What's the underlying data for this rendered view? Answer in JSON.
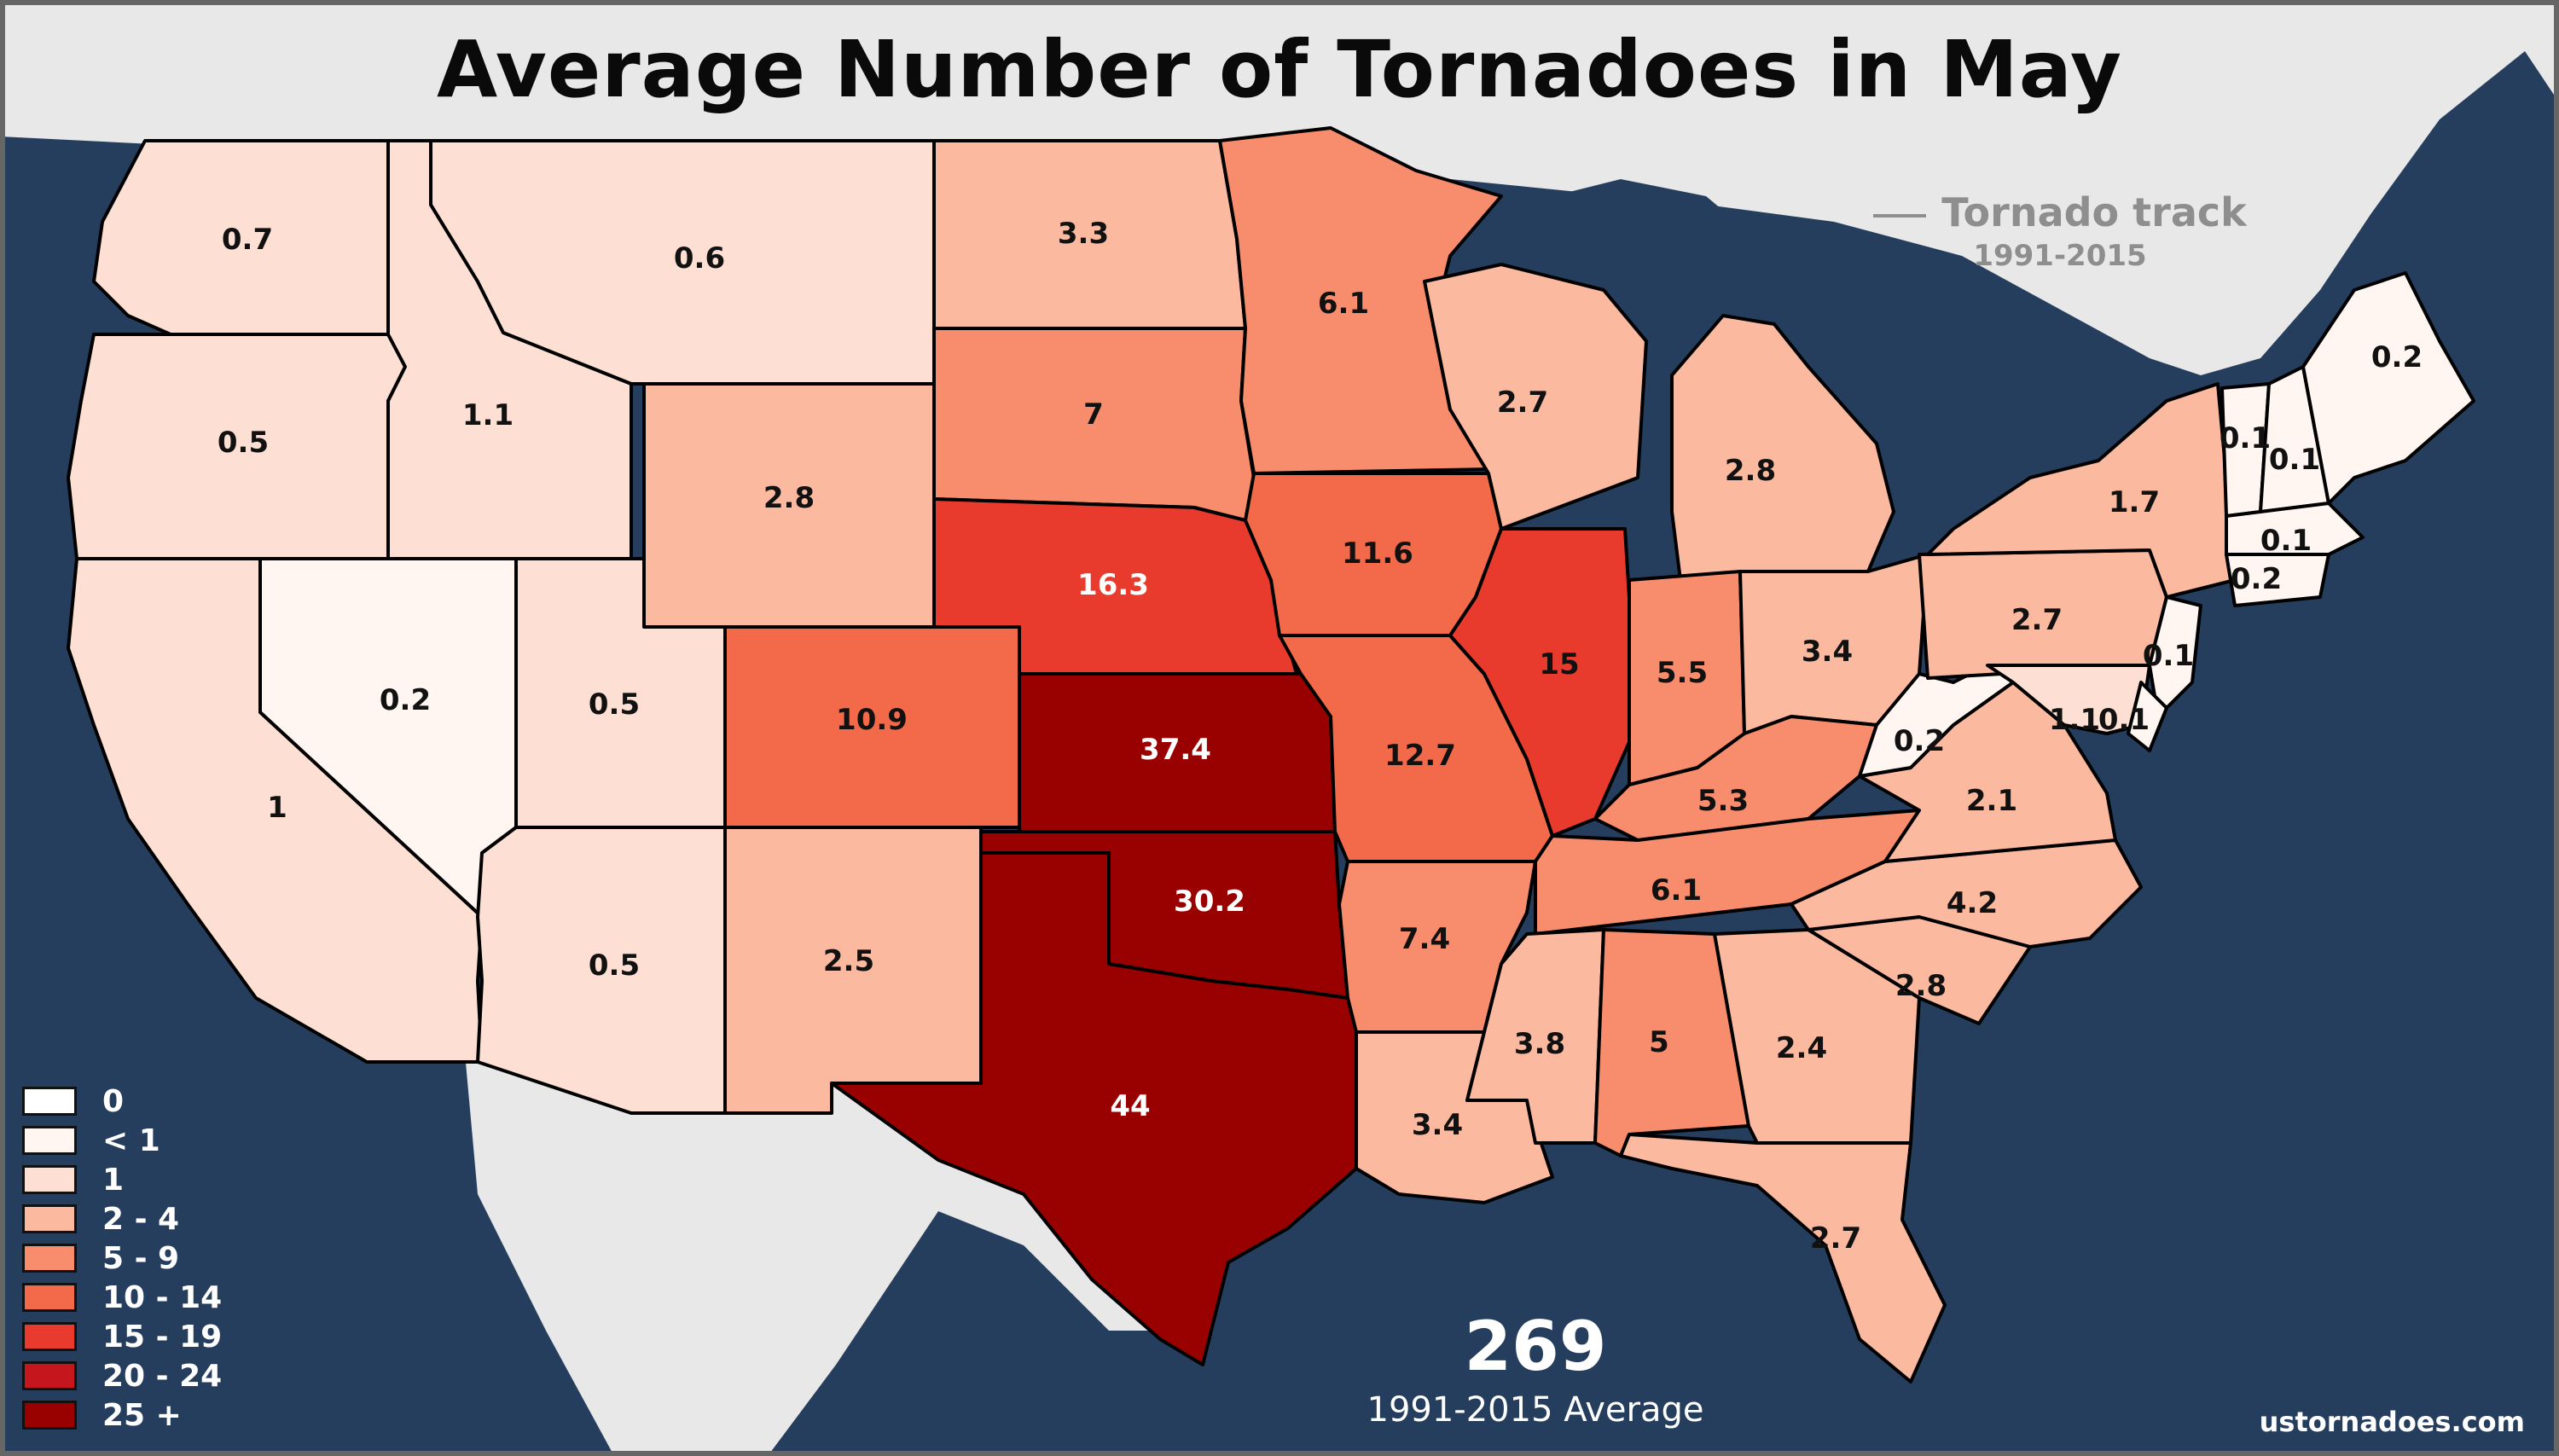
{
  "title": "Average Number of Tornadoes in May",
  "track_legend": {
    "label": "Tornado track",
    "years": "1991-2015"
  },
  "total": {
    "value": "269",
    "label": "1991-2015 Average"
  },
  "site": "ustornadoes.com",
  "colors": {
    "water": "#263e5e",
    "land": "#e8e8e8",
    "c0": "#ffffff",
    "lt1": "#fff5f1",
    "c1": "#fde0d3",
    "c2_4": "#fbb99f",
    "c5_9": "#f78d6d",
    "c10_14": "#f26a4a",
    "c15_19": "#e83b2d",
    "c20_24": "#c5161d",
    "c25": "#990000"
  },
  "legend": [
    {
      "label": "0",
      "color": "#ffffff"
    },
    {
      "label": "< 1",
      "color": "#fff5f1"
    },
    {
      "label": "1",
      "color": "#fde0d3"
    },
    {
      "label": "2 - 4",
      "color": "#fbb99f"
    },
    {
      "label": "5 - 9",
      "color": "#f78d6d"
    },
    {
      "label": "10 - 14",
      "color": "#f26a4a"
    },
    {
      "label": "15 - 19",
      "color": "#e83b2d"
    },
    {
      "label": "20 - 24",
      "color": "#c5161d"
    },
    {
      "label": "25 +",
      "color": "#990000"
    }
  ],
  "states": {
    "WA": {
      "value": "0.7",
      "color": "#fde0d3"
    },
    "OR": {
      "value": "0.5",
      "color": "#fde0d3"
    },
    "CA": {
      "value": "1",
      "color": "#fde0d3"
    },
    "NV": {
      "value": "0.2",
      "color": "#fff5f1"
    },
    "ID": {
      "value": "1.1",
      "color": "#fde0d3"
    },
    "MT": {
      "value": "0.6",
      "color": "#fde0d3"
    },
    "WY": {
      "value": "2.8",
      "color": "#fbb99f"
    },
    "UT": {
      "value": "0.5",
      "color": "#fde0d3"
    },
    "AZ": {
      "value": "0.5",
      "color": "#fde0d3"
    },
    "CO": {
      "value": "10.9",
      "color": "#f26a4a"
    },
    "NM": {
      "value": "2.5",
      "color": "#fbb99f"
    },
    "ND": {
      "value": "3.3",
      "color": "#fbb99f"
    },
    "SD": {
      "value": "7",
      "color": "#f78d6d"
    },
    "NE": {
      "value": "16.3",
      "color": "#e83b2d"
    },
    "KS": {
      "value": "37.4",
      "color": "#990000"
    },
    "OK": {
      "value": "30.2",
      "color": "#990000"
    },
    "TX": {
      "value": "44",
      "color": "#990000"
    },
    "MN": {
      "value": "6.1",
      "color": "#f78d6d"
    },
    "IA": {
      "value": "11.6",
      "color": "#f26a4a"
    },
    "MO": {
      "value": "12.7",
      "color": "#f26a4a"
    },
    "AR": {
      "value": "7.4",
      "color": "#f78d6d"
    },
    "LA": {
      "value": "3.4",
      "color": "#fbb99f"
    },
    "WI": {
      "value": "2.7",
      "color": "#fbb99f"
    },
    "IL": {
      "value": "15",
      "color": "#e83b2d"
    },
    "MI": {
      "value": "2.8",
      "color": "#fbb99f"
    },
    "IN": {
      "value": "5.5",
      "color": "#f78d6d"
    },
    "OH": {
      "value": "3.4",
      "color": "#fbb99f"
    },
    "KY": {
      "value": "5.3",
      "color": "#f78d6d"
    },
    "TN": {
      "value": "6.1",
      "color": "#f78d6d"
    },
    "MS": {
      "value": "3.8",
      "color": "#fbb99f"
    },
    "AL": {
      "value": "5",
      "color": "#f78d6d"
    },
    "GA": {
      "value": "2.4",
      "color": "#fbb99f"
    },
    "FL": {
      "value": "2.7",
      "color": "#fbb99f"
    },
    "SC": {
      "value": "2.8",
      "color": "#fbb99f"
    },
    "NC": {
      "value": "4.2",
      "color": "#fbb99f"
    },
    "VA": {
      "value": "2.1",
      "color": "#fbb99f"
    },
    "WV": {
      "value": "0.2",
      "color": "#fff5f1"
    },
    "PA": {
      "value": "2.7",
      "color": "#fbb99f"
    },
    "NY": {
      "value": "1.7",
      "color": "#fbb99f"
    },
    "NJ": {
      "value": "0.1",
      "color": "#fff5f1"
    },
    "MD": {
      "value": "1.1",
      "color": "#fde0d3"
    },
    "DE": {
      "value": "0.1",
      "color": "#fff5f1"
    },
    "VT": {
      "value": "0.1",
      "color": "#fff5f1"
    },
    "NH": {
      "value": "0.1",
      "color": "#fff5f1"
    },
    "ME": {
      "value": "0.2",
      "color": "#fff5f1"
    },
    "MA": {
      "value": "0.1",
      "color": "#fff5f1"
    },
    "CT": {
      "value": "0.2",
      "color": "#fff5f1"
    }
  }
}
